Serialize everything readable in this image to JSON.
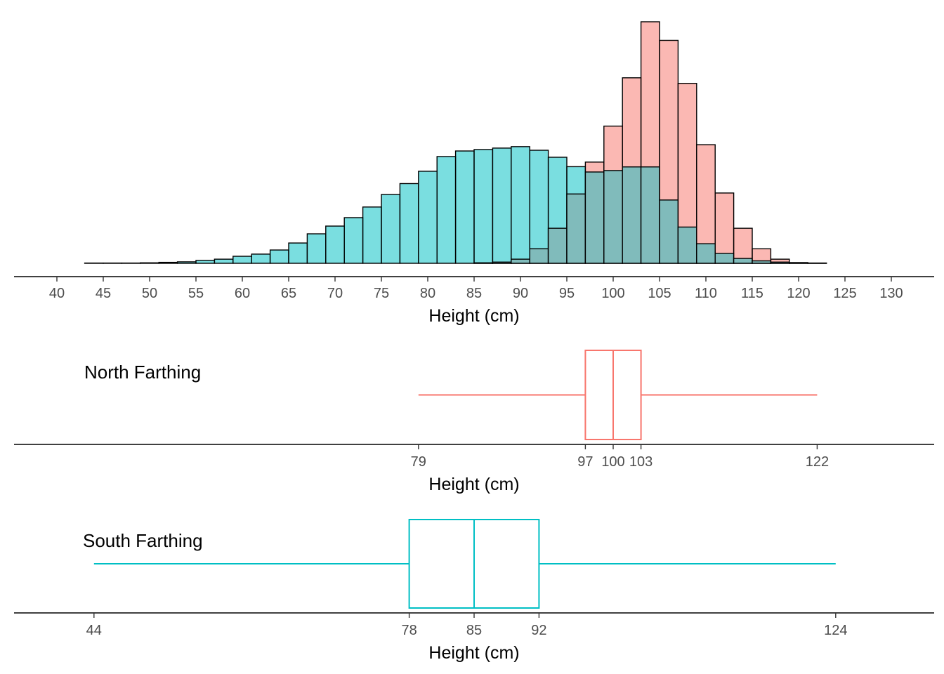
{
  "chart_data": [
    {
      "type": "histogram",
      "xlabel": "Height (cm)",
      "ylabel": "",
      "xlim": [
        38.5,
        131.5
      ],
      "ylim": [
        0,
        100
      ],
      "x_ticks": [
        40,
        45,
        50,
        55,
        60,
        65,
        70,
        75,
        80,
        85,
        90,
        95,
        100,
        105,
        110,
        115,
        120,
        125,
        130
      ],
      "bin_width": 2,
      "bin_starts": [
        43,
        45,
        47,
        49,
        51,
        53,
        55,
        57,
        59,
        61,
        63,
        65,
        67,
        69,
        71,
        73,
        75,
        77,
        79,
        81,
        83,
        85,
        87,
        89,
        91,
        93,
        95,
        97,
        99,
        101,
        103,
        105,
        107,
        109,
        111,
        113,
        115,
        117,
        119,
        121
      ],
      "series": [
        {
          "name": "North Farthing",
          "color": "#F8766D",
          "values": [
            0,
            0,
            0,
            0,
            0,
            0,
            0,
            0,
            0,
            0,
            0,
            0,
            0,
            0,
            0,
            0,
            0,
            0,
            0,
            0,
            0,
            0.2,
            0.5,
            1.7,
            6,
            14.5,
            28.7,
            41.9,
            56.8,
            76.8,
            100,
            92.3,
            74.5,
            49.1,
            29.1,
            14.5,
            6,
            1.7,
            0.3,
            0.1
          ]
        },
        {
          "name": "South Farthing",
          "color": "#00BFC4",
          "values": [
            0.1,
            0.1,
            0.1,
            0.2,
            0.4,
            0.6,
            1.2,
            1.7,
            2.9,
            3.8,
            5.5,
            8.4,
            12.2,
            15.4,
            18.9,
            23.3,
            28.5,
            33,
            38.1,
            44.2,
            46.5,
            47.1,
            47.7,
            48.3,
            46.8,
            43.9,
            40,
            37.8,
            38.4,
            39.9,
            39.9,
            26.2,
            15,
            8.1,
            4.1,
            2,
            1,
            0.5,
            0.2,
            0.1
          ]
        }
      ],
      "overlap_color": "#80BBBB",
      "grid": false,
      "legend": "none"
    },
    {
      "type": "boxplot",
      "label": "North Farthing",
      "color": "#F8766D",
      "xlabel": "Height (cm)",
      "min": 79,
      "q1": 97,
      "median": 100,
      "q3": 103,
      "max": 122,
      "tick_labels": [
        "79",
        "97",
        "100",
        "103",
        "122"
      ]
    },
    {
      "type": "boxplot",
      "label": "South Farthing",
      "color": "#00BFC4",
      "xlabel": "Height (cm)",
      "min": 44,
      "q1": 78,
      "median": 85,
      "q3": 92,
      "max": 124,
      "tick_labels": [
        "44",
        "78",
        "85",
        "92",
        "124"
      ]
    }
  ]
}
